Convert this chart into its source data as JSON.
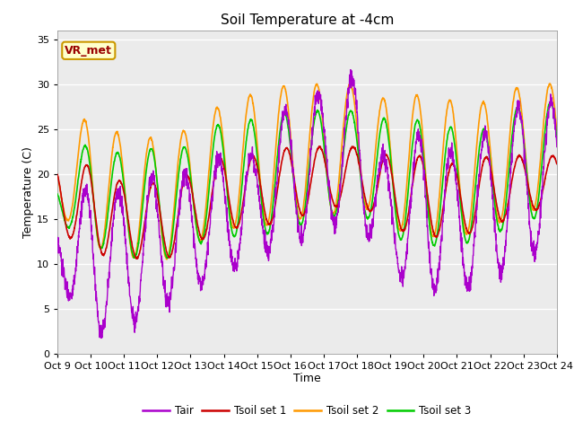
{
  "title": "Soil Temperature at -4cm",
  "xlabel": "Time",
  "ylabel": "Temperature (C)",
  "xlim_start": 0,
  "xlim_end": 15,
  "ylim": [
    0,
    36
  ],
  "yticks": [
    0,
    5,
    10,
    15,
    20,
    25,
    30,
    35
  ],
  "fig_bg": "#ffffff",
  "plot_bg": "#ebebeb",
  "xtick_labels": [
    "Oct 9",
    "Oct 10",
    "Oct 11",
    "Oct 12",
    "Oct 13",
    "Oct 14",
    "Oct 15",
    "Oct 16",
    "Oct 17",
    "Oct 18",
    "Oct 19",
    "Oct 20",
    "Oct 21",
    "Oct 22",
    "Oct 23",
    "Oct 24"
  ],
  "colors": {
    "Tair": "#aa00cc",
    "Tsoil1": "#cc0000",
    "Tsoil2": "#ff9900",
    "Tsoil3": "#00cc00"
  },
  "legend_labels": [
    "Tair",
    "Tsoil set 1",
    "Tsoil set 2",
    "Tsoil set 3"
  ],
  "annotation_text": "VR_met",
  "annotation_color": "#990000",
  "annotation_bg": "#ffffcc",
  "annotation_border": "#cc9900"
}
